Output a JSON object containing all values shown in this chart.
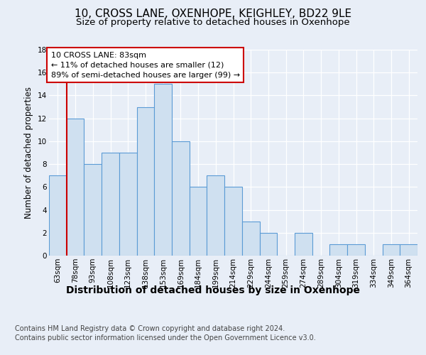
{
  "title": "10, CROSS LANE, OXENHOPE, KEIGHLEY, BD22 9LE",
  "subtitle": "Size of property relative to detached houses in Oxenhope",
  "xlabel": "Distribution of detached houses by size in Oxenhope",
  "ylabel": "Number of detached properties",
  "categories": [
    "63sqm",
    "78sqm",
    "93sqm",
    "108sqm",
    "123sqm",
    "138sqm",
    "153sqm",
    "169sqm",
    "184sqm",
    "199sqm",
    "214sqm",
    "229sqm",
    "244sqm",
    "259sqm",
    "274sqm",
    "289sqm",
    "304sqm",
    "319sqm",
    "334sqm",
    "349sqm",
    "364sqm"
  ],
  "values": [
    7,
    12,
    8,
    9,
    9,
    13,
    15,
    10,
    6,
    7,
    6,
    3,
    2,
    0,
    2,
    0,
    1,
    1,
    0,
    1,
    1
  ],
  "bar_color": "#cfe0f0",
  "bar_edge_color": "#5b9bd5",
  "highlight_line_color": "#cc0000",
  "highlight_bar_index": 1,
  "ylim": [
    0,
    18
  ],
  "yticks": [
    0,
    2,
    4,
    6,
    8,
    10,
    12,
    14,
    16,
    18
  ],
  "annotation_title": "10 CROSS LANE: 83sqm",
  "annotation_line1": "← 11% of detached houses are smaller (12)",
  "annotation_line2": "89% of semi-detached houses are larger (99) →",
  "annotation_box_color": "#ffffff",
  "annotation_box_edge": "#cc0000",
  "footer_line1": "Contains HM Land Registry data © Crown copyright and database right 2024.",
  "footer_line2": "Contains public sector information licensed under the Open Government Licence v3.0.",
  "background_color": "#e8eef7",
  "plot_background": "#e8eef7",
  "grid_color": "#ffffff",
  "title_fontsize": 11,
  "subtitle_fontsize": 9.5,
  "tick_fontsize": 7.5,
  "ylabel_fontsize": 8.5,
  "xlabel_fontsize": 10,
  "annotation_fontsize": 8.0,
  "footer_fontsize": 7.0
}
